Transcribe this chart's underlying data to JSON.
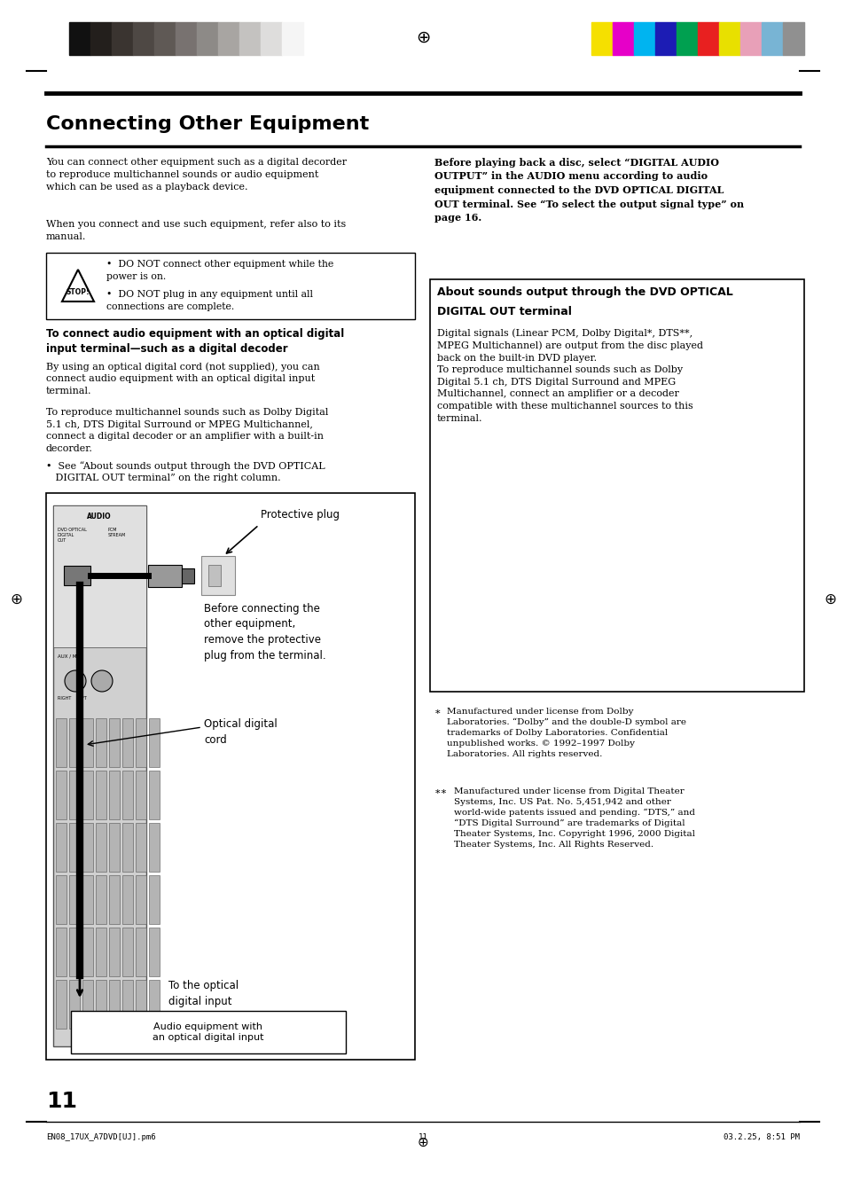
{
  "bg_color": "#ffffff",
  "page_number": "11",
  "footer_left": "EN08_17UX_A7DVD[UJ].pm6",
  "footer_center": "11",
  "footer_right": "03.2.25, 8:51 PM",
  "title": "Connecting Other Equipment",
  "header_color_bars_left": [
    "#111111",
    "#231f1c",
    "#3a3430",
    "#4e4844",
    "#5f5955",
    "#787270",
    "#8d8a87",
    "#a8a5a2",
    "#c4c2c0",
    "#dedddc",
    "#f5f5f5"
  ],
  "header_color_bars_right": [
    "#f5e000",
    "#e600c8",
    "#00b4f0",
    "#1c1cb4",
    "#00a050",
    "#e82020",
    "#e8e000",
    "#e8a0b8",
    "#78b4d4",
    "#909090"
  ],
  "main_text_intro": "You can connect other equipment such as a digital decorder\nto reproduce multichannel sounds or audio equipment\nwhich can be used as a playback device.",
  "main_text_2": "When you connect and use such equipment, refer also to its\nmanual.",
  "caution_bullet1": "DO NOT connect other equipment while the\npower is on.",
  "caution_bullet2": "DO NOT plug in any equipment until all\nconnections are complete.",
  "subheading": "To connect audio equipment with an optical digital\ninput terminal—such as a digital decoder",
  "sub_text_1": "By using an optical digital cord (not supplied), you can\nconnect audio equipment with an optical digital input\nterminal.",
  "sub_text_2": "To reproduce multichannel sounds such as Dolby Digital\n5.1 ch, DTS Digital Surround or MPEG Multichannel,\nconnect a digital decoder or an amplifier with a built-in\ndecorder.",
  "sub_bullet": "See “About sounds output through the DVD OPTICAL\n   DIGITAL OUT terminal” on the right column.",
  "right_para_bold": "Before playing back a disc, select “DIGITAL AUDIO\nOUTPUT” in the AUDIO menu according to audio\nequipment connected to the DVD OPTICAL DIGITAL\nOUT terminal. See “To select the output signal type” on\npage 16.",
  "box_title_line1": "About sounds output through the DVD OPTICAL",
  "box_title_line2": "DIGITAL OUT terminal",
  "box_body": "Digital signals (Linear PCM, Dolby Digital*, DTS**,\nMPEG Multichannel) are output from the disc played\nback on the built-in DVD player.\nTo reproduce multichannel sounds such as Dolby\nDigital 5.1 ch, DTS Digital Surround and MPEG\nMultichannel, connect an amplifier or a decoder\ncompatible with these multichannel sources to this\nterminal.",
  "footnote1_star": "*",
  "footnote1_text": "Manufactured under license from Dolby\nLaboratories. “Dolby” and the double-D symbol are\ntrademarks of Dolby Laboratories. Confidential\nunpublished works. © 1992–1997 Dolby\nLaboratories. All rights reserved.",
  "footnote2_star": "**",
  "footnote2_text": "Manufactured under license from Digital Theater\nSystems, Inc. US Pat. No. 5,451,942 and other\nworld-wide patents issued and pending. “DTS,” and\n“DTS Digital Surround” are trademarks of Digital\nTheater Systems, Inc. Copyright 1996, 2000 Digital\nTheater Systems, Inc. All Rights Reserved.",
  "diag_label_plug": "Protective plug",
  "diag_label_before": "Before connecting the\nother equipment,\nremove the protective\nplug from the terminal.",
  "diag_label_cord": "Optical digital\ncord",
  "diag_label_to_optical": "To the optical\ndigital input",
  "diag_label_audio_eq": "Audio equipment with\nan optical digital input"
}
